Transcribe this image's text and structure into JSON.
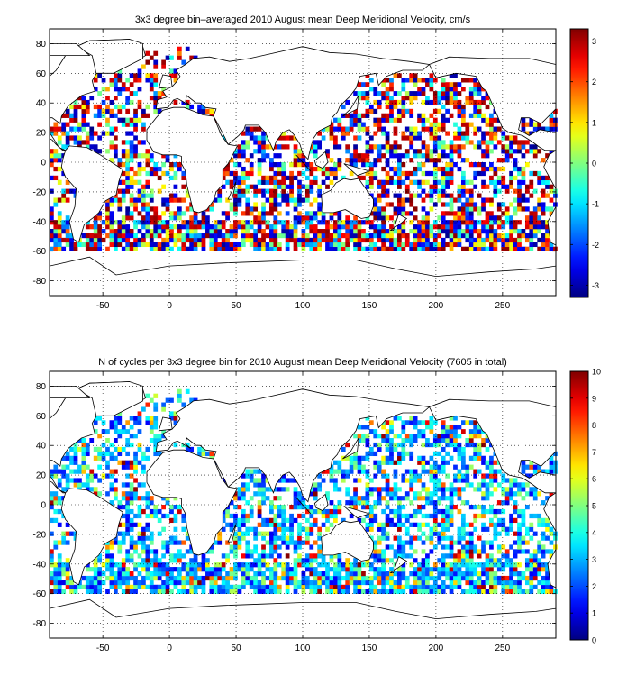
{
  "chart_data": [
    {
      "type": "heatmap",
      "title": "3x3 degree bin–averaged 2010 August mean Deep Meridional Velocity, cm/s",
      "xlabel": "",
      "ylabel": "",
      "xlim": [
        -90,
        290
      ],
      "ylim": [
        -90,
        90
      ],
      "x_ticks": [
        -50,
        0,
        50,
        100,
        150,
        200,
        250
      ],
      "y_ticks": [
        80,
        60,
        40,
        20,
        0,
        -20,
        -40,
        -60,
        -80
      ],
      "grid": "dotted",
      "bin_size_deg": 3,
      "colormap": "jet",
      "colorbar": {
        "min": -3.3,
        "max": 3.3,
        "ticks": [
          3,
          2,
          1,
          0,
          -1,
          -2,
          -3
        ],
        "location": "right"
      },
      "value_model": "signed"
    },
    {
      "type": "heatmap",
      "title": "N of cycles per 3x3 degree bin for 2010 August mean Deep Meridional Velocity (7605 in total)",
      "xlabel": "",
      "ylabel": "",
      "xlim": [
        -90,
        290
      ],
      "ylim": [
        -90,
        90
      ],
      "x_ticks": [
        -50,
        0,
        50,
        100,
        150,
        200,
        250
      ],
      "y_ticks": [
        80,
        60,
        40,
        20,
        0,
        -20,
        -40,
        -60,
        -80
      ],
      "grid": "dotted",
      "bin_size_deg": 3,
      "colormap": "jet",
      "colorbar": {
        "min": 0,
        "max": 10,
        "ticks": [
          10,
          9,
          8,
          7,
          6,
          5,
          4,
          3,
          2,
          1,
          0
        ],
        "location": "right"
      },
      "value_model": "count"
    }
  ],
  "colors": {
    "jet_stops": [
      "#00008f",
      "#0000ff",
      "#00ffff",
      "#ffff00",
      "#ff0000",
      "#800000"
    ],
    "coast": "#000000",
    "frame": "#000000"
  }
}
